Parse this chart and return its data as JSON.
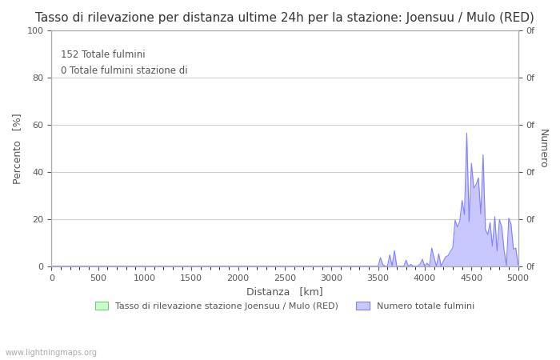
{
  "title": "Tasso di rilevazione per distanza ultime 24h per la stazione: Joensuu / Mulo (RED)",
  "xlabel": "Distanza   [km]",
  "ylabel_left": "Percento   [%]",
  "ylabel_right": "Numero",
  "annotation1": "152 Totale fulmini",
  "annotation2": "0 Totale fulmini stazione di",
  "xlim": [
    0,
    5000
  ],
  "ylim": [
    0,
    100
  ],
  "yticks": [
    0,
    20,
    40,
    60,
    80,
    100
  ],
  "xticks": [
    0,
    500,
    1000,
    1500,
    2000,
    2500,
    3000,
    3500,
    4000,
    4500,
    5000
  ],
  "right_ytick_labels": [
    "0f",
    "0f",
    "0f",
    "0f",
    "0f",
    "0f"
  ],
  "grid_color": "#cccccc",
  "bg_color": "#ffffff",
  "fill_blue_color": "#c8c8ff",
  "line_blue_color": "#8080ff",
  "fill_green_color": "#c8ffc8",
  "line_green_color": "#80c080",
  "watermark": "www.lightningmaps.org",
  "legend_label1": "Tasso di rilevazione stazione Joensuu / Mulo (RED)",
  "legend_label2": "Numero totale fulmini",
  "title_fontsize": 11,
  "label_fontsize": 9,
  "tick_fontsize": 8
}
